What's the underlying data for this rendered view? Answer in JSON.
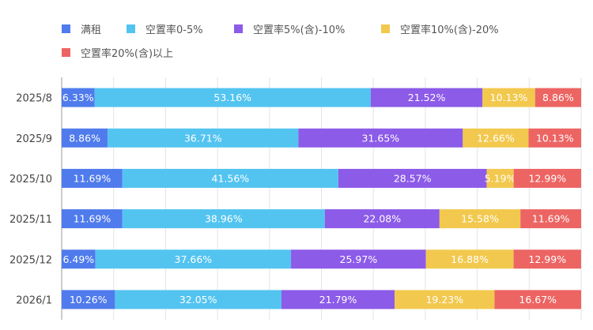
{
  "chart_data": {
    "type": "bar",
    "orientation": "horizontal",
    "stacked": true,
    "categories": [
      "2025/8",
      "2025/9",
      "2025/10",
      "2025/11",
      "2025/12",
      "2026/1"
    ],
    "series": [
      {
        "name": "满租",
        "color": "#4f7bec",
        "values": [
          6.33,
          8.86,
          11.69,
          11.69,
          6.49,
          10.26
        ]
      },
      {
        "name": "空置率0-5%",
        "color": "#53c4f0",
        "values": [
          53.16,
          36.71,
          41.56,
          38.96,
          37.66,
          32.05
        ]
      },
      {
        "name": "空置率5%(含)-10%",
        "color": "#8c5be8",
        "values": [
          21.52,
          31.65,
          28.57,
          22.08,
          25.97,
          21.79
        ]
      },
      {
        "name": "空置率10%(含)-20%",
        "color": "#f2c94e",
        "values": [
          10.13,
          12.66,
          5.19,
          15.58,
          16.88,
          19.23
        ]
      },
      {
        "name": "空置率20%(含)以上",
        "color": "#ec6563",
        "values": [
          8.86,
          10.13,
          12.99,
          11.69,
          12.99,
          16.67
        ]
      }
    ],
    "labels": [
      [
        "6.33%",
        "53.16%",
        "21.52%",
        "10.13%",
        "8.86%"
      ],
      [
        "8.86%",
        "36.71%",
        "31.65%",
        "12.66%",
        "10.13%"
      ],
      [
        "11.69%",
        "41.56%",
        "28.57%",
        "5.19%",
        "12.99%"
      ],
      [
        "11.69%",
        "38.96%",
        "22.08%",
        "15.58%",
        "11.69%"
      ],
      [
        "6.49%",
        "37.66%",
        "25.97%",
        "16.88%",
        "12.99%"
      ],
      [
        "10.26%",
        "32.05%",
        "21.79%",
        "19.23%",
        "16.67%"
      ]
    ],
    "xlim": [
      0,
      100
    ],
    "grid": true,
    "legend": "top-left"
  }
}
